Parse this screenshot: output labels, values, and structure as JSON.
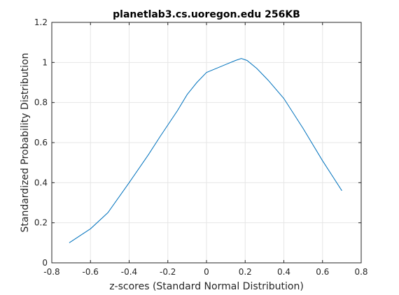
{
  "chart_data": {
    "type": "line",
    "title": "planetlab3.cs.uoregon.edu 256KB",
    "xlabel": "z-scores (Standard Normal Distribution)",
    "ylabel": "Standardized Probability Distribution",
    "xlim": [
      -0.8,
      0.8
    ],
    "ylim": [
      0,
      1.2
    ],
    "xticks": [
      -0.8,
      -0.6,
      -0.4,
      -0.2,
      0,
      0.2,
      0.4,
      0.6,
      0.8
    ],
    "xtick_labels": [
      "-0.8",
      "-0.6",
      "-0.4",
      "-0.2",
      "0",
      "0.2",
      "0.4",
      "0.6",
      "0.8"
    ],
    "yticks": [
      0,
      0.2,
      0.4,
      0.6,
      0.8,
      1,
      1.2
    ],
    "ytick_labels": [
      "0",
      "0.2",
      "0.4",
      "0.6",
      "0.8",
      "1",
      "1.2"
    ],
    "grid": true,
    "series": [
      {
        "color": "#0072BD",
        "x": [
          -0.71,
          -0.6,
          -0.51,
          -0.4,
          -0.3,
          -0.24,
          -0.15,
          -0.1,
          -0.05,
          0,
          0.05,
          0.1,
          0.15,
          0.18,
          0.21,
          0.26,
          0.32,
          0.4,
          0.5,
          0.6,
          0.7
        ],
        "y": [
          0.1,
          0.17,
          0.25,
          0.4,
          0.54,
          0.63,
          0.76,
          0.84,
          0.9,
          0.95,
          0.97,
          0.99,
          1.01,
          1.02,
          1.01,
          0.97,
          0.91,
          0.82,
          0.67,
          0.51,
          0.36
        ]
      }
    ]
  }
}
